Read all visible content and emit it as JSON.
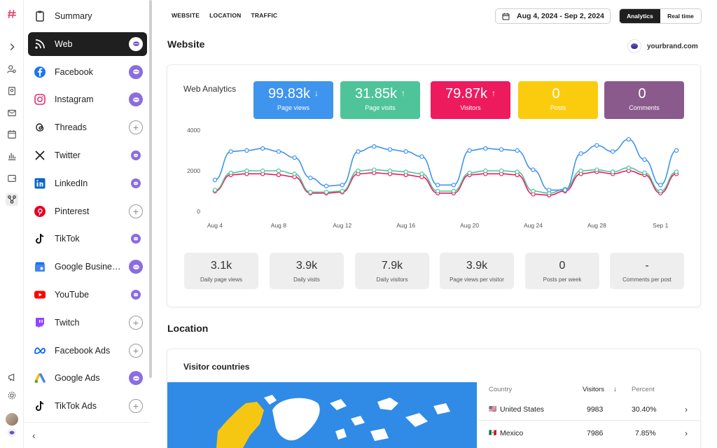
{
  "sidebar": {
    "items": [
      {
        "label": "Summary",
        "icon": "clipboard-icon",
        "badge": "none"
      },
      {
        "label": "Web",
        "icon": "rss-icon",
        "badge": "connected"
      },
      {
        "label": "Facebook",
        "icon": "facebook-icon",
        "badge": "connected"
      },
      {
        "label": "Instagram",
        "icon": "instagram-icon",
        "badge": "connected"
      },
      {
        "label": "Threads",
        "icon": "threads-icon",
        "badge": "add"
      },
      {
        "label": "Twitter",
        "icon": "x-icon",
        "badge": "connected"
      },
      {
        "label": "LinkedIn",
        "icon": "linkedin-icon",
        "badge": "connected"
      },
      {
        "label": "Pinterest",
        "icon": "pinterest-icon",
        "badge": "add"
      },
      {
        "label": "TikTok",
        "icon": "tiktok-icon",
        "badge": "connected"
      },
      {
        "label": "Google Business ...",
        "icon": "google-business-icon",
        "badge": "connected"
      },
      {
        "label": "YouTube",
        "icon": "youtube-icon",
        "badge": "connected"
      },
      {
        "label": "Twitch",
        "icon": "twitch-icon",
        "badge": "add"
      },
      {
        "label": "Facebook Ads",
        "icon": "meta-icon",
        "badge": "add"
      },
      {
        "label": "Google Ads",
        "icon": "google-ads-icon",
        "badge": "connected"
      },
      {
        "label": "TikTok Ads",
        "icon": "tiktok-icon",
        "badge": "add"
      }
    ],
    "collapse_label": "‹"
  },
  "topnav": {
    "website": "WEBSITE",
    "location": "LOCATION",
    "traffic": "TRAFFIC"
  },
  "daterange": "Aug 4, 2024 - Sep 2, 2024",
  "toggle": {
    "analytics": "Analytics",
    "realtime": "Real time"
  },
  "website": {
    "heading": "Website",
    "brand": "yourbrand.com",
    "analytics_title": "Web Analytics",
    "kpis": [
      {
        "value": "99.83k",
        "arrow": "↓",
        "label": "Page views",
        "color": "#3f94ee"
      },
      {
        "value": "31.85k",
        "arrow": "↑",
        "label": "Page visits",
        "color": "#4fc49a"
      },
      {
        "value": "79.87k",
        "arrow": "↑",
        "label": "Visitors",
        "color": "#ee1a5e"
      },
      {
        "value": "0",
        "arrow": "",
        "label": "Posts",
        "color": "#fbcc0e"
      },
      {
        "value": "0",
        "arrow": "",
        "label": "Comments",
        "color": "#8b5a8c"
      }
    ],
    "stats": [
      {
        "value": "3.1k",
        "label": "Daily page views"
      },
      {
        "value": "3.9k",
        "label": "Daily visits"
      },
      {
        "value": "7.9k",
        "label": "Daily visitors"
      },
      {
        "value": "3.9k",
        "label": "Page views per visitor"
      },
      {
        "value": "0",
        "label": "Posts per week"
      },
      {
        "value": "-",
        "label": "Comments per post"
      }
    ]
  },
  "chart_data": {
    "type": "line",
    "title": "Web Analytics",
    "x_ticks": [
      "Aug 4",
      "Aug 8",
      "Aug 12",
      "Aug 16",
      "Aug 20",
      "Aug 24",
      "Aug 28",
      "Sep 1"
    ],
    "x": [
      "Aug 4",
      "Aug 5",
      "Aug 6",
      "Aug 7",
      "Aug 8",
      "Aug 9",
      "Aug 10",
      "Aug 11",
      "Aug 12",
      "Aug 13",
      "Aug 14",
      "Aug 15",
      "Aug 16",
      "Aug 17",
      "Aug 18",
      "Aug 19",
      "Aug 20",
      "Aug 21",
      "Aug 22",
      "Aug 23",
      "Aug 24",
      "Aug 25",
      "Aug 26",
      "Aug 27",
      "Aug 28",
      "Aug 29",
      "Aug 30",
      "Aug 31",
      "Sep 1",
      "Sep 2"
    ],
    "y_ticks": [
      0,
      2000,
      4000
    ],
    "ylim": [
      0,
      4000
    ],
    "series": [
      {
        "color": "#3f94ee",
        "values": [
          1550,
          2950,
          3000,
          3100,
          2950,
          2650,
          1650,
          1250,
          1300,
          2950,
          3200,
          3050,
          2950,
          2700,
          1300,
          1300,
          3000,
          3100,
          3050,
          3000,
          2050,
          1050,
          1050,
          2850,
          3250,
          2950,
          3550,
          2550,
          1300,
          3000
        ]
      },
      {
        "color": "#4fc49a",
        "values": [
          1050,
          1900,
          2000,
          2000,
          2000,
          1850,
          950,
          950,
          1000,
          2000,
          2050,
          2000,
          1950,
          1850,
          1000,
          1000,
          1900,
          2000,
          2000,
          1950,
          1000,
          900,
          1100,
          2000,
          2050,
          1950,
          2150,
          1900,
          1000,
          1950
        ]
      },
      {
        "color": "#ee1a5e",
        "values": [
          1000,
          1800,
          1850,
          1850,
          1800,
          1700,
          900,
          900,
          950,
          1850,
          1900,
          1850,
          1800,
          1700,
          900,
          900,
          1800,
          1850,
          1850,
          1800,
          850,
          800,
          1000,
          1850,
          1950,
          1850,
          2000,
          1800,
          900,
          1850
        ]
      }
    ],
    "grid": false,
    "legend": "none"
  },
  "location": {
    "heading": "Location",
    "visitor_title": "Visitor countries",
    "columns": {
      "country": "Country",
      "visitors": "Visitors",
      "sort_arrow": "↓",
      "percent": "Percent"
    },
    "rows": [
      {
        "flag": "🇺🇸",
        "country": "United States",
        "visitors": "9983",
        "percent": "30.40%"
      },
      {
        "flag": "🇲🇽",
        "country": "Mexico",
        "visitors": "7986",
        "percent": "7.85%"
      }
    ],
    "map_colors": {
      "ocean": "#2f8be6",
      "land": "#ffffff",
      "highlight": "#f6c712"
    }
  }
}
